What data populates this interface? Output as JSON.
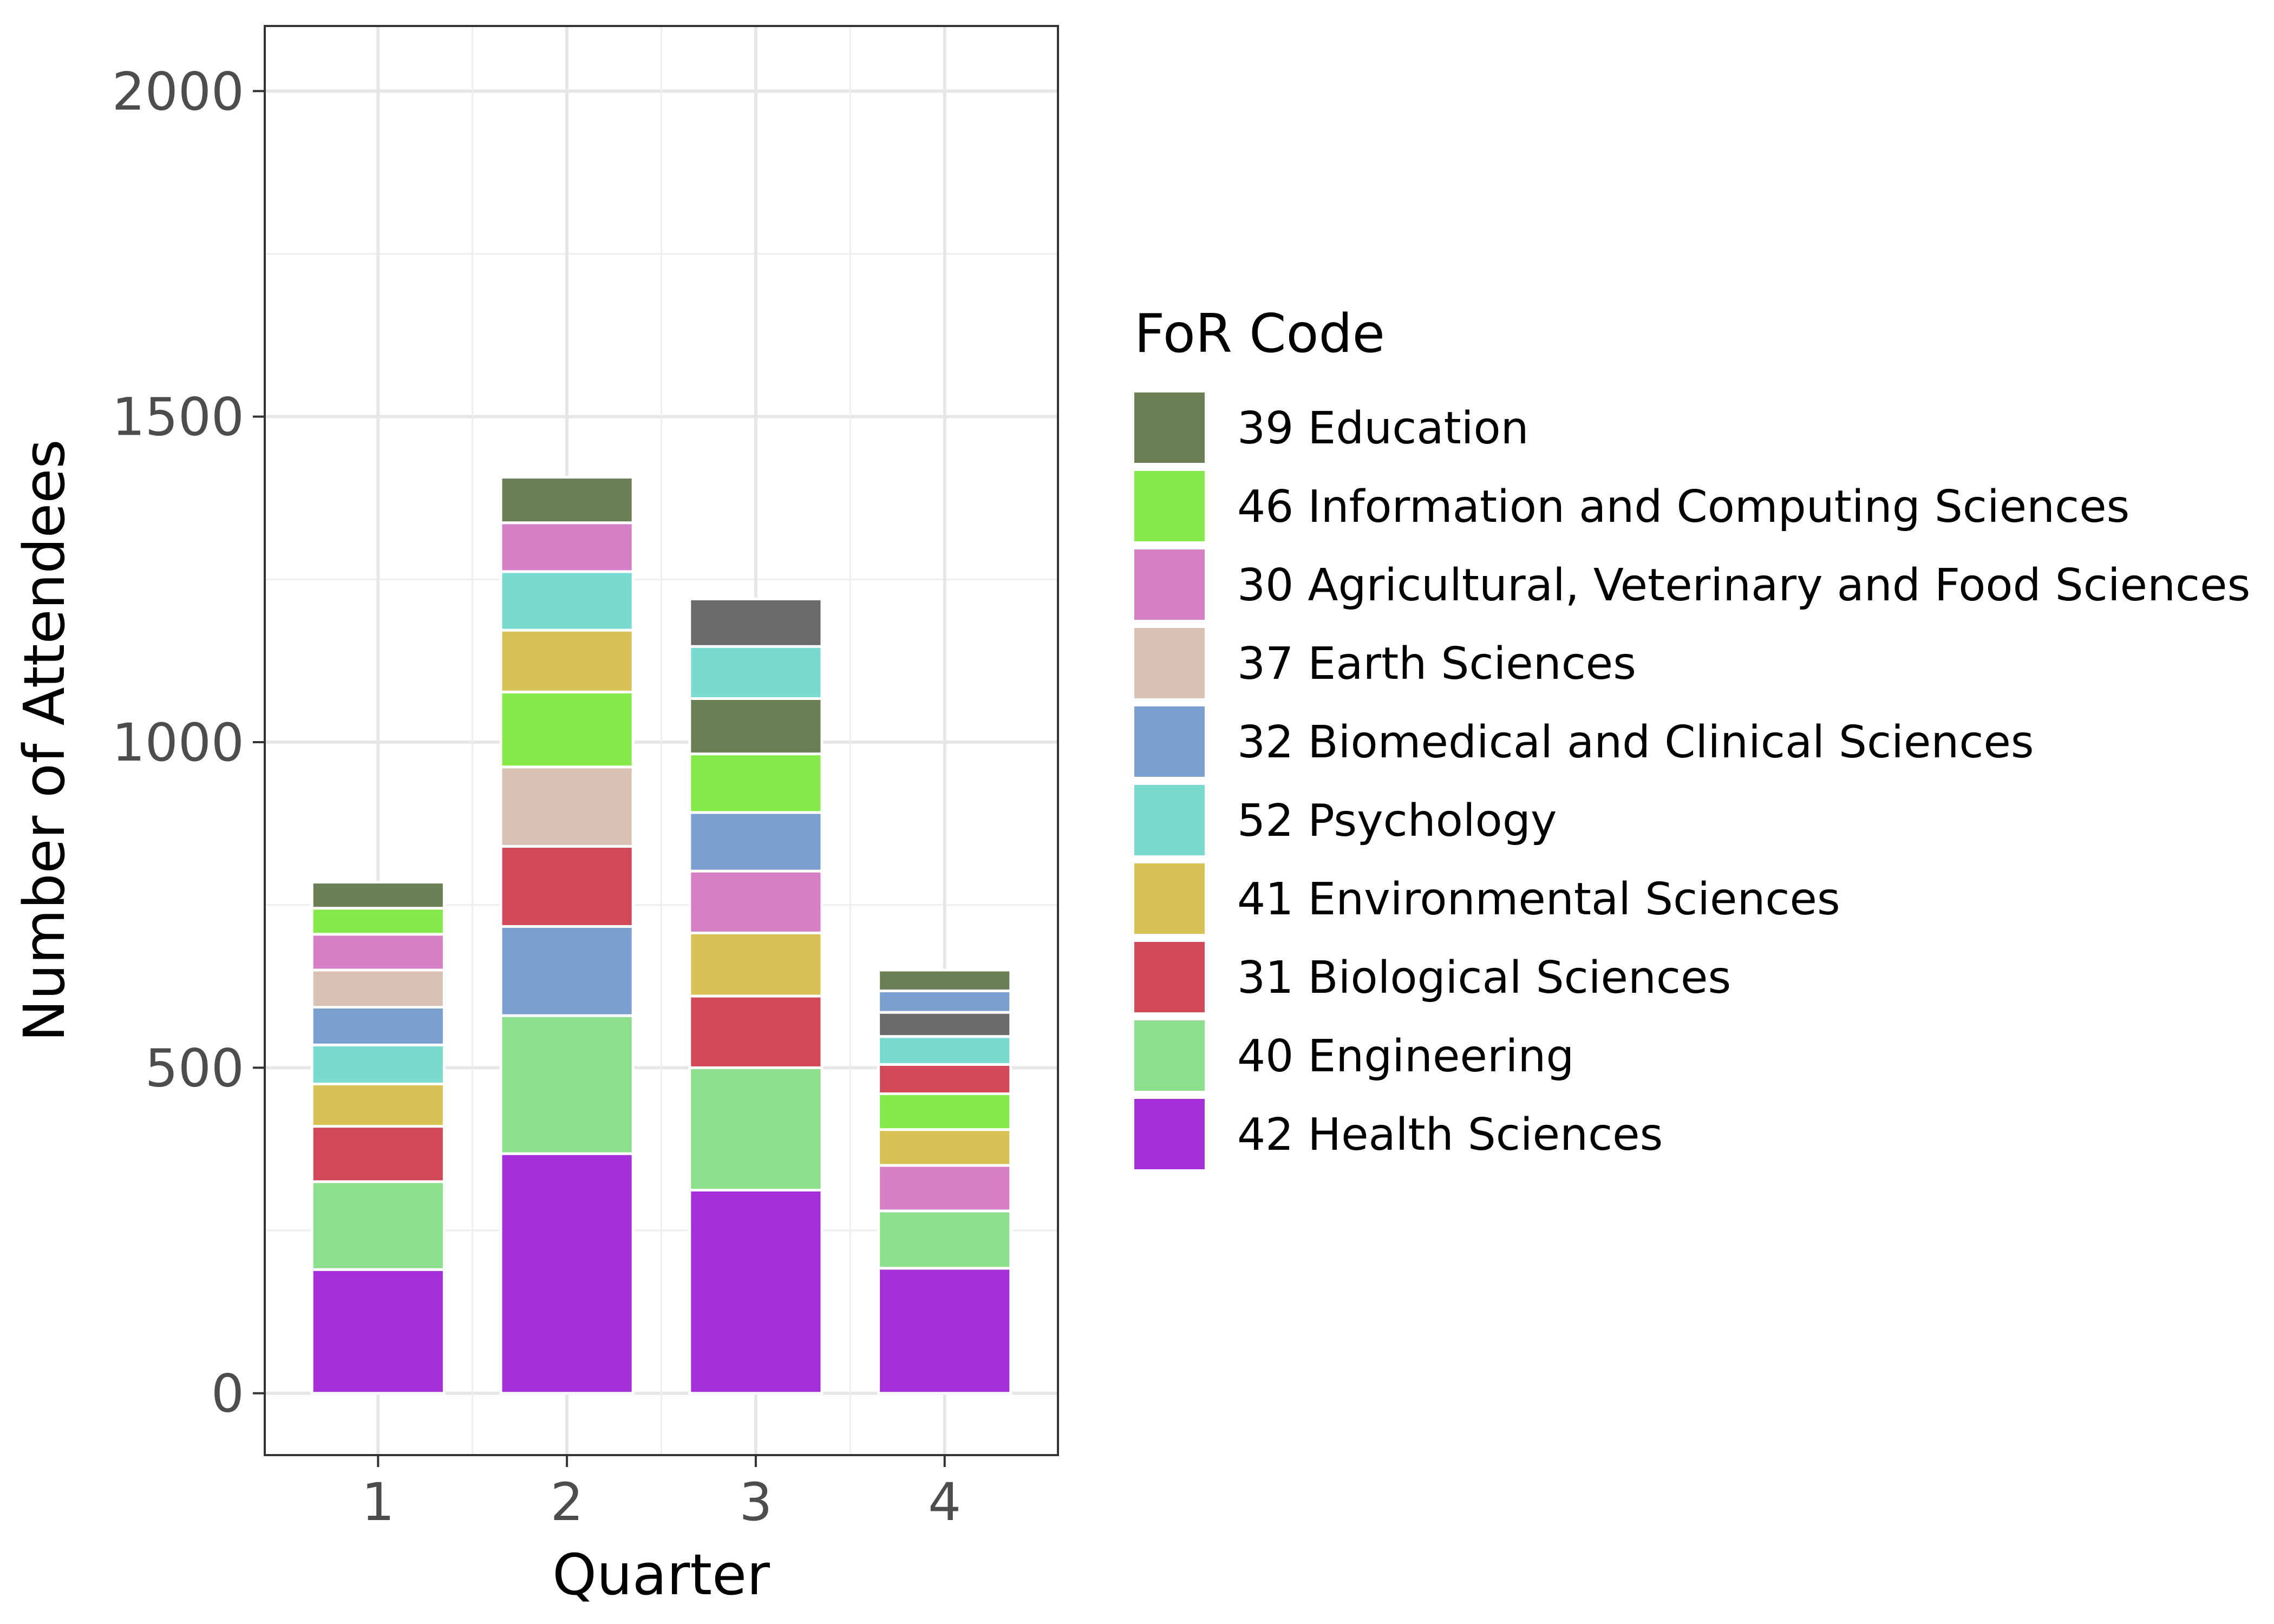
{
  "chart_data": {
    "type": "bar",
    "stacked": true,
    "title": "",
    "xlabel": "Quarter",
    "ylabel": "Number of Attendees",
    "categories": [
      "1",
      "2",
      "3",
      "4"
    ],
    "ylim": [
      -95,
      2100
    ],
    "yticks": [
      0,
      500,
      1000,
      1500,
      2000
    ],
    "grid": true,
    "legend": {
      "title": "FoR Code",
      "placement": "right"
    },
    "legend_order": [
      "39 Education",
      "46 Information and Computing Sciences",
      "30 Agricultural, Veterinary and Food Sciences",
      "37 Earth Sciences",
      "32 Biomedical and Clinical Sciences",
      "52 Psychology",
      "41 Environmental Sciences",
      "31 Biological Sciences",
      "40 Engineering",
      "42 Health Sciences"
    ],
    "series_colors": {
      "39 Education": "#6b7f57",
      "46 Information and Computing Sciences": "#86e94a",
      "30 Agricultural, Veterinary and Food Sciences": "#d580c6",
      "37 Earth Sciences": "#d9c1b4",
      "32 Biomedical and Clinical Sciences": "#7b9fcf",
      "52 Psychology": "#79dbcf",
      "41 Environmental Sciences": "#d8c256",
      "31 Biological Sciences": "#d14859",
      "40 Engineering": "#8ddf8c",
      "42 Health Sciences": "#a52fd8",
      "Unlabeled (grey)": "#6a6a6a"
    },
    "stacks": [
      {
        "category": "1",
        "segments": [
          {
            "series": "42 Health Sciences",
            "value": 190
          },
          {
            "series": "40 Engineering",
            "value": 135
          },
          {
            "series": "31 Biological Sciences",
            "value": 85
          },
          {
            "series": "41 Environmental Sciences",
            "value": 65
          },
          {
            "series": "52 Psychology",
            "value": 60
          },
          {
            "series": "32 Biomedical and Clinical Sciences",
            "value": 58
          },
          {
            "series": "37 Earth Sciences",
            "value": 57
          },
          {
            "series": "30 Agricultural, Veterinary and Food Sciences",
            "value": 55
          },
          {
            "series": "46 Information and Computing Sciences",
            "value": 40
          },
          {
            "series": "39 Education",
            "value": 40
          }
        ]
      },
      {
        "category": "2",
        "segments": [
          {
            "series": "42 Health Sciences",
            "value": 368
          },
          {
            "series": "40 Engineering",
            "value": 212
          },
          {
            "series": "32 Biomedical and Clinical Sciences",
            "value": 137
          },
          {
            "series": "31 Biological Sciences",
            "value": 123
          },
          {
            "series": "37 Earth Sciences",
            "value": 122
          },
          {
            "series": "46 Information and Computing Sciences",
            "value": 115
          },
          {
            "series": "41 Environmental Sciences",
            "value": 95
          },
          {
            "series": "52 Psychology",
            "value": 90
          },
          {
            "series": "30 Agricultural, Veterinary and Food Sciences",
            "value": 75
          },
          {
            "series": "39 Education",
            "value": 70
          }
        ]
      },
      {
        "category": "3",
        "segments": [
          {
            "series": "42 Health Sciences",
            "value": 312
          },
          {
            "series": "40 Engineering",
            "value": 188
          },
          {
            "series": "31 Biological Sciences",
            "value": 110
          },
          {
            "series": "41 Environmental Sciences",
            "value": 97
          },
          {
            "series": "30 Agricultural, Veterinary and Food Sciences",
            "value": 95
          },
          {
            "series": "32 Biomedical and Clinical Sciences",
            "value": 90
          },
          {
            "series": "46 Information and Computing Sciences",
            "value": 90
          },
          {
            "series": "39 Education",
            "value": 85
          },
          {
            "series": "52 Psychology",
            "value": 80
          },
          {
            "series": "Unlabeled (grey)",
            "value": 73
          }
        ]
      },
      {
        "category": "4",
        "segments": [
          {
            "series": "42 Health Sciences",
            "value": 192
          },
          {
            "series": "40 Engineering",
            "value": 88
          },
          {
            "series": "30 Agricultural, Veterinary and Food Sciences",
            "value": 70
          },
          {
            "series": "41 Environmental Sciences",
            "value": 55
          },
          {
            "series": "46 Information and Computing Sciences",
            "value": 55
          },
          {
            "series": "31 Biological Sciences",
            "value": 45
          },
          {
            "series": "52 Psychology",
            "value": 43
          },
          {
            "series": "Unlabeled (grey)",
            "value": 37
          },
          {
            "series": "32 Biomedical and Clinical Sciences",
            "value": 33
          },
          {
            "series": "39 Education",
            "value": 32
          }
        ]
      }
    ]
  }
}
